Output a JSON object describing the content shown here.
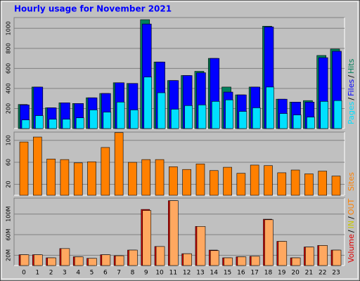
{
  "chart_data": [
    {
      "type": "bar",
      "title": "Hourly usage for November 2021",
      "ylim": [
        0,
        1107
      ],
      "yticks": [
        200,
        400,
        600,
        800,
        1000
      ],
      "grid": true,
      "separator": "/",
      "series": [
        {
          "name": "Hits",
          "color": "#00805c",
          "values": [
            240,
            414,
            207,
            257,
            250,
            307,
            350,
            457,
            450,
            1086,
            664,
            479,
            529,
            571,
            700,
            414,
            336,
            414,
            1021,
            293,
            264,
            279,
            729,
            793
          ]
        },
        {
          "name": "Files",
          "color": "#0000ff",
          "values": [
            236,
            414,
            207,
            257,
            250,
            307,
            350,
            457,
            450,
            1043,
            664,
            479,
            529,
            557,
            700,
            364,
            336,
            414,
            1014,
            293,
            264,
            264,
            707,
            771
          ]
        },
        {
          "name": "Pages",
          "color": "#00e0ff",
          "values": [
            86,
            129,
            93,
            93,
            107,
            186,
            164,
            264,
            186,
            514,
            357,
            193,
            229,
            236,
            271,
            286,
            171,
            207,
            414,
            150,
            136,
            114,
            271,
            279
          ]
        }
      ]
    },
    {
      "type": "bar",
      "ylim": [
        0,
        115
      ],
      "yticks": [
        20,
        60,
        100
      ],
      "grid": true,
      "series": [
        {
          "name": "Sites",
          "color": "#ff8000",
          "values": [
            97,
            106,
            66,
            65,
            59,
            61,
            87,
            114,
            60,
            65,
            65,
            52,
            47,
            57,
            45,
            51,
            40,
            55,
            54,
            41,
            46,
            39,
            44,
            35
          ]
        }
      ]
    },
    {
      "type": "bar",
      "ylim": [
        0,
        131
      ],
      "yticks": [
        {
          "value": 20,
          "label": "20M"
        },
        {
          "value": 60,
          "label": "60M"
        },
        {
          "value": 100,
          "label": "100M"
        }
      ],
      "grid": true,
      "separator": "/",
      "categories": [
        "0",
        "1",
        "2",
        "3",
        "4",
        "5",
        "6",
        "7",
        "8",
        "9",
        "10",
        "11",
        "12",
        "13",
        "14",
        "15",
        "16",
        "17",
        "18",
        "19",
        "20",
        "21",
        "22",
        "23"
      ],
      "axis_label": "Volume",
      "series": [
        {
          "name": "IN",
          "color": "#e00000",
          "label_color": "#c8c800",
          "values": [
            21,
            21,
            15,
            33,
            17,
            14,
            21,
            19,
            30,
            109,
            37,
            126,
            23,
            76,
            30,
            15,
            17,
            18,
            90,
            47,
            15,
            36,
            39,
            30
          ]
        },
        {
          "name": "OUT",
          "color": "#ffa860",
          "label_color": "#ff8000",
          "values": [
            21,
            21,
            15,
            33,
            17,
            14,
            21,
            19,
            30,
            107,
            37,
            126,
            23,
            76,
            29,
            15,
            17,
            18,
            89,
            47,
            15,
            36,
            39,
            30
          ]
        }
      ]
    }
  ]
}
